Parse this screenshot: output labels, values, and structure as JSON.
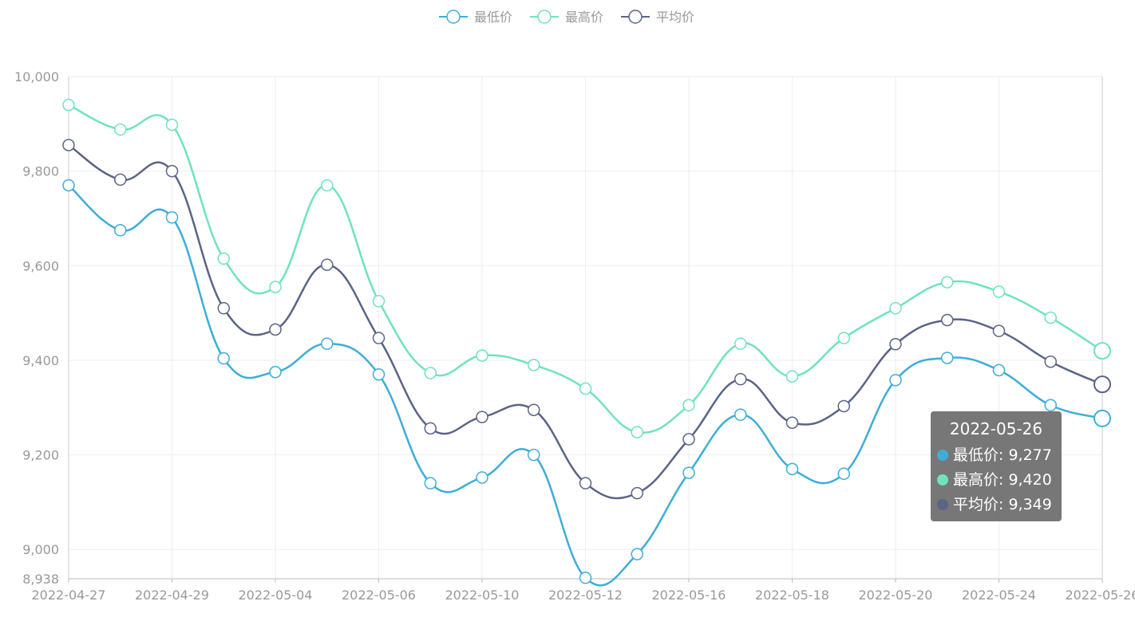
{
  "chart_data": {
    "type": "line",
    "smooth": true,
    "categories": [
      "2022-04-27",
      "2022-04-28",
      "2022-04-29",
      "2022-05-03",
      "2022-05-04",
      "2022-05-05",
      "2022-05-06",
      "2022-05-09",
      "2022-05-10",
      "2022-05-11",
      "2022-05-12",
      "2022-05-13",
      "2022-05-16",
      "2022-05-17",
      "2022-05-18",
      "2022-05-19",
      "2022-05-20",
      "2022-05-23",
      "2022-05-24",
      "2022-05-25",
      "2022-05-26"
    ],
    "series": [
      {
        "name": "最低价",
        "color": "#3eadd9",
        "values": [
          9770,
          9675,
          9702,
          9404,
          9375,
          9435,
          9370,
          9140,
          9152,
          9200,
          8940,
          8990,
          9162,
          9285,
          9170,
          9160,
          9358,
          9405,
          9379,
          9305,
          9277
        ]
      },
      {
        "name": "最高价",
        "color": "#6fe3bc",
        "values": [
          9940,
          9888,
          9898,
          9615,
          9555,
          9770,
          9525,
          9373,
          9410,
          9390,
          9340,
          9248,
          9305,
          9435,
          9366,
          9447,
          9510,
          9565,
          9545,
          9490,
          9420
        ]
      },
      {
        "name": "平均价",
        "color": "#5a6486",
        "values": [
          9855,
          9782,
          9800,
          9510,
          9465,
          9602,
          9447,
          9256,
          9280,
          9295,
          9140,
          9119,
          9233,
          9360,
          9268,
          9303,
          9434,
          9485,
          9462,
          9397,
          9349
        ]
      }
    ],
    "x_tick_labels": [
      "2022-04-27",
      "2022-04-29",
      "2022-05-04",
      "2022-05-06",
      "2022-05-10",
      "2022-05-12",
      "2022-05-16",
      "2022-05-18",
      "2022-05-20",
      "2022-05-24",
      "2022-05-26"
    ],
    "y_tick_labels": [
      "8,938",
      "9,000",
      "9,200",
      "9,400",
      "9,600",
      "9,800",
      "10,000"
    ],
    "y_ticks": [
      8938,
      9000,
      9200,
      9400,
      9600,
      9800,
      10000
    ],
    "ylim": [
      8938,
      10000
    ],
    "legend_position": "top-center",
    "grid": true,
    "highlighted_index": 20,
    "tooltip": {
      "title": "2022-05-26",
      "rows": [
        {
          "label": "最低价: 9,277",
          "color": "#3eadd9"
        },
        {
          "label": "最高价: 9,420",
          "color": "#6fe3bc"
        },
        {
          "label": "平均价: 9,349",
          "color": "#5a6486"
        }
      ]
    }
  }
}
